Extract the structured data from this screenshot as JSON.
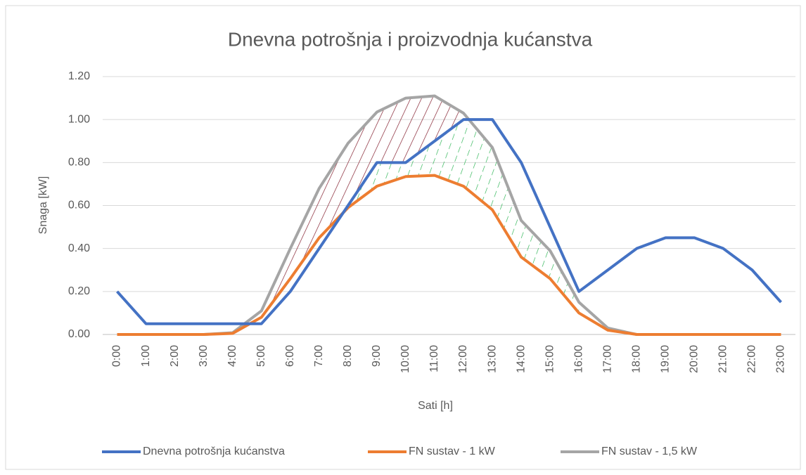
{
  "chart_data": {
    "type": "line",
    "title": "Dnevna potrošnja i proizvodnja kućanstva",
    "x_label": "Sati [h]",
    "y_label": "Snaga [kW]",
    "categories": [
      "0:00",
      "1:00",
      "2:00",
      "3:00",
      "4:00",
      "5:00",
      "6:00",
      "7:00",
      "8:00",
      "9:00",
      "10:00",
      "11:00",
      "12:00",
      "13:00",
      "14:00",
      "15:00",
      "16:00",
      "17:00",
      "18:00",
      "19:00",
      "20:00",
      "21:00",
      "22:00",
      "23:00"
    ],
    "series": [
      {
        "name": "Dnevna potrošnja kućanstva",
        "color": "#4472c4",
        "values": [
          0.2,
          0.05,
          0.05,
          0.05,
          0.05,
          0.05,
          0.2,
          0.4,
          0.6,
          0.8,
          0.8,
          0.9,
          1.0,
          1.0,
          0.8,
          0.5,
          0.2,
          0.3,
          0.4,
          0.45,
          0.45,
          0.4,
          0.3,
          0.15
        ]
      },
      {
        "name": "FN sustav - 1 kW",
        "color": "#ed7d31",
        "values": [
          0,
          0,
          0,
          0,
          0.005,
          0.08,
          0.26,
          0.45,
          0.59,
          0.69,
          0.735,
          0.74,
          0.69,
          0.58,
          0.36,
          0.26,
          0.1,
          0.02,
          0,
          0,
          0,
          0,
          0,
          0
        ]
      },
      {
        "name": "FN sustav - 1,5 kW",
        "color": "#a5a5a5",
        "values": [
          0,
          0,
          0,
          0,
          0.008,
          0.11,
          0.4,
          0.68,
          0.89,
          1.035,
          1.1,
          1.11,
          1.03,
          0.87,
          0.53,
          0.39,
          0.15,
          0.03,
          0,
          0,
          0,
          0,
          0,
          0
        ]
      }
    ],
    "ylim": [
      0,
      1.2
    ],
    "yticks": [
      {
        "value": 0,
        "label": "0.00"
      },
      {
        "value": 0.2,
        "label": "0.20"
      },
      {
        "value": 0.4,
        "label": "0.40"
      },
      {
        "value": 0.6,
        "label": "0.60"
      },
      {
        "value": 0.8,
        "label": "0.80"
      },
      {
        "value": 1.0,
        "label": "1.00"
      },
      {
        "value": 1.2,
        "label": "1.20"
      }
    ],
    "grid": true,
    "legend": "bottom"
  }
}
